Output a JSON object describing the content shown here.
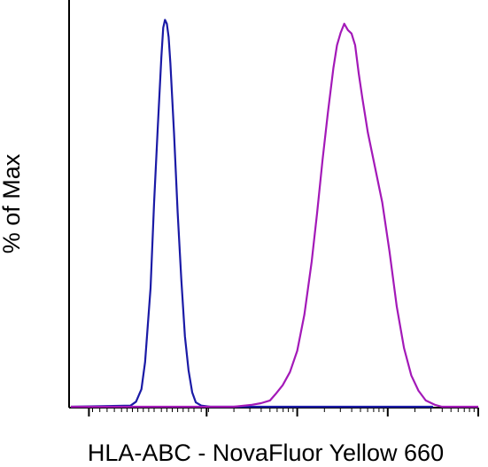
{
  "chart_data": {
    "type": "line",
    "title": "",
    "xlabel": "HLA-ABC - NovaFluor Yellow 660",
    "ylabel": "% of Max",
    "x_scale": "log",
    "x_tick_labels": [],
    "y_tick_labels": [],
    "ylim": [
      0,
      100
    ],
    "grid": false,
    "legend": "none",
    "series": [
      {
        "color": "#1a1aa6",
        "points": [
          [
            0.0,
            0.0
          ],
          [
            0.33,
            0.3
          ],
          [
            0.36,
            1.3
          ],
          [
            0.39,
            4.5
          ],
          [
            0.41,
            11.4
          ],
          [
            0.44,
            30.4
          ],
          [
            0.46,
            52.3
          ],
          [
            0.48,
            71.3
          ],
          [
            0.5,
            89.5
          ],
          [
            0.51,
            97.0
          ],
          [
            0.52,
            99.0
          ],
          [
            0.53,
            98.0
          ],
          [
            0.54,
            94.6
          ],
          [
            0.55,
            87.8
          ],
          [
            0.57,
            70.0
          ],
          [
            0.59,
            49.7
          ],
          [
            0.61,
            32.6
          ],
          [
            0.63,
            18.0
          ],
          [
            0.65,
            9.3
          ],
          [
            0.67,
            3.7
          ],
          [
            0.69,
            1.1
          ],
          [
            0.72,
            0.3
          ],
          [
            0.77,
            0.0
          ],
          [
            2.0,
            0.0
          ]
        ]
      },
      {
        "color": "#a319b8",
        "points": [
          [
            0.0,
            0.0
          ],
          [
            0.9,
            0.0
          ],
          [
            1.0,
            0.5
          ],
          [
            1.05,
            0.9
          ],
          [
            1.1,
            1.6
          ],
          [
            1.13,
            3.2
          ],
          [
            1.17,
            5.5
          ],
          [
            1.21,
            8.9
          ],
          [
            1.25,
            14.3
          ],
          [
            1.29,
            23.6
          ],
          [
            1.33,
            37.1
          ],
          [
            1.36,
            49.5
          ],
          [
            1.39,
            63.2
          ],
          [
            1.42,
            75.4
          ],
          [
            1.45,
            86.6
          ],
          [
            1.47,
            92.5
          ],
          [
            1.49,
            95.7
          ],
          [
            1.51,
            98.0
          ],
          [
            1.53,
            96.4
          ],
          [
            1.55,
            95.5
          ],
          [
            1.57,
            92.5
          ],
          [
            1.59,
            85.2
          ],
          [
            1.61,
            78.9
          ],
          [
            1.64,
            70.2
          ],
          [
            1.68,
            61.2
          ],
          [
            1.72,
            52.3
          ],
          [
            1.76,
            39.7
          ],
          [
            1.8,
            25.6
          ],
          [
            1.84,
            15.0
          ],
          [
            1.88,
            8.0
          ],
          [
            1.92,
            4.1
          ],
          [
            1.96,
            1.6
          ],
          [
            2.01,
            0.5
          ],
          [
            2.05,
            0.0
          ],
          [
            2.25,
            0.0
          ]
        ]
      }
    ]
  }
}
